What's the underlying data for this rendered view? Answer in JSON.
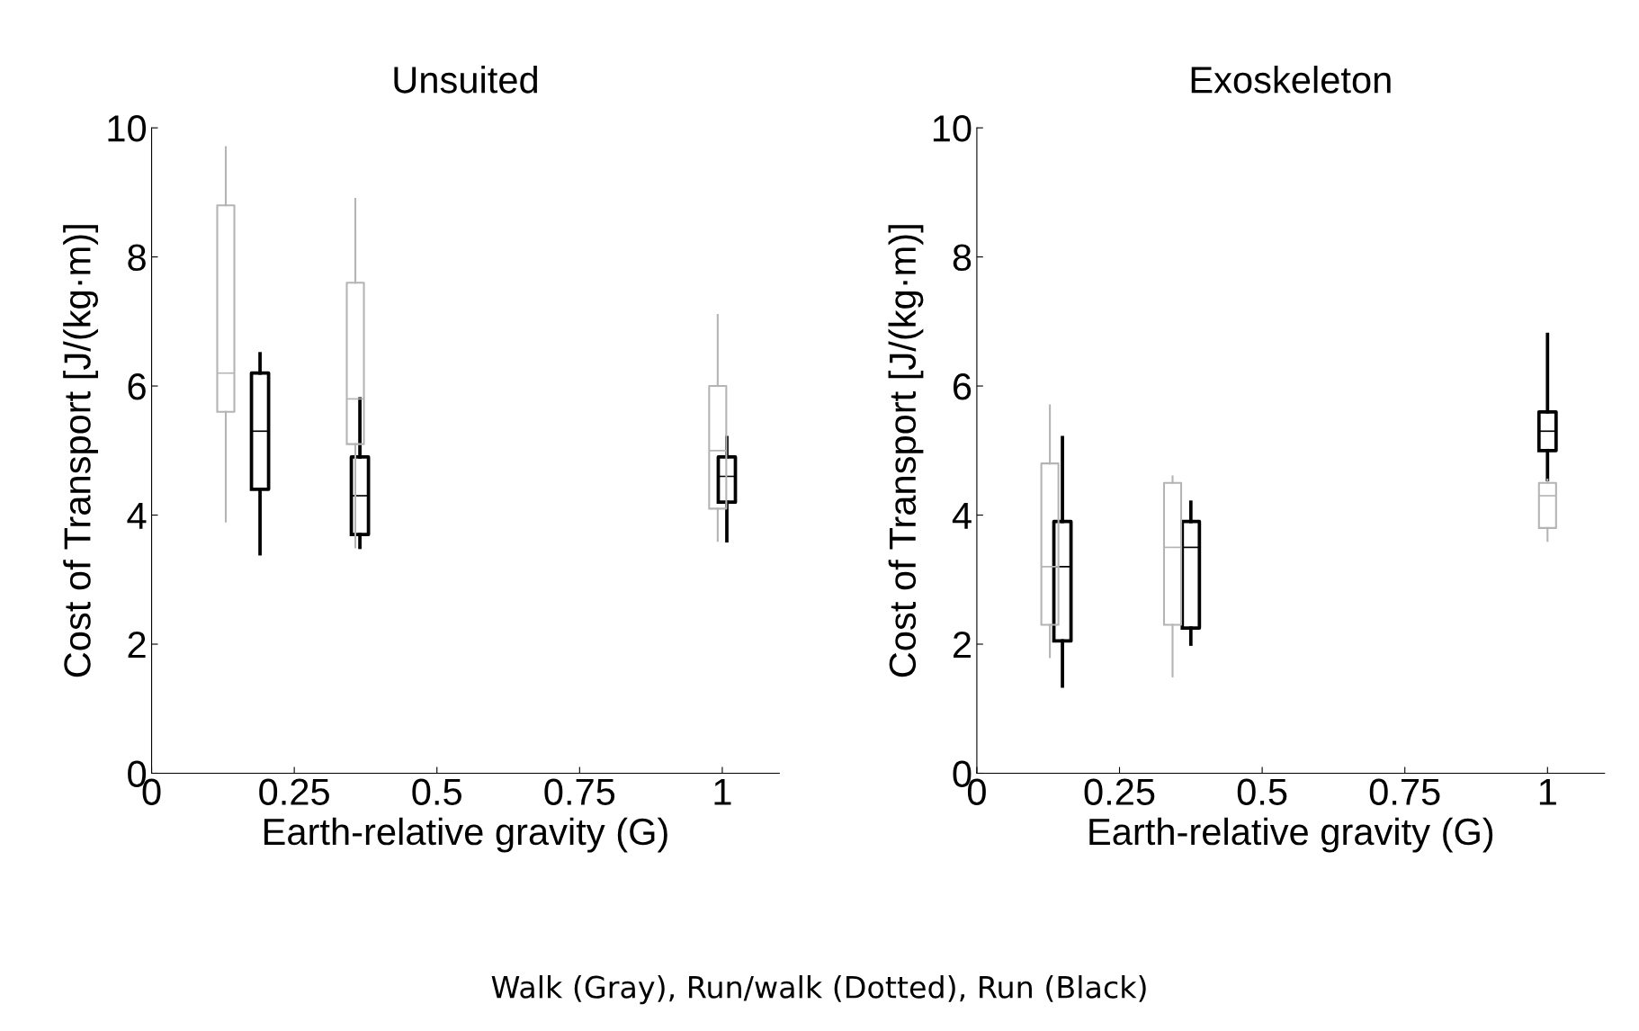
{
  "chart_data": [
    {
      "type": "box",
      "title": "Unsuited",
      "xlabel": "Earth-relative gravity (G)",
      "ylabel": "Cost of Transport [J/(kg·m)]",
      "xlim": [
        0,
        1.1
      ],
      "xticks": [
        0,
        0.25,
        0.5,
        0.75,
        1
      ],
      "ylim": [
        0,
        10
      ],
      "yticks": [
        0,
        2,
        4,
        6,
        8,
        10
      ],
      "grid": false,
      "annotations": [
        "Walk (Gray), Run/walk (Dotted), Run (Black)"
      ],
      "series": [
        {
          "color": "#b4b4b4",
          "x": [
            0.13,
            0.357,
            0.992
          ],
          "boxes": [
            {
              "low": 3.9,
              "q1": 5.6,
              "median": 6.2,
              "q3": 8.8,
              "high": 9.7
            },
            {
              "low": 3.5,
              "q1": 5.1,
              "median": 5.8,
              "q3": 7.6,
              "high": 8.9
            },
            {
              "low": 3.6,
              "q1": 4.1,
              "median": 5.0,
              "q3": 6.0,
              "high": 7.1
            }
          ]
        },
        {
          "color": "#000000",
          "x": [
            0.19,
            0.365,
            1.008
          ],
          "boxes": [
            {
              "low": 3.4,
              "q1": 4.4,
              "median": 5.3,
              "q3": 6.2,
              "high": 6.5
            },
            {
              "low": 3.5,
              "q1": 3.7,
              "median": 4.3,
              "q3": 4.9,
              "high": 5.8
            },
            {
              "low": 3.6,
              "q1": 4.2,
              "median": 4.6,
              "q3": 4.9,
              "high": 5.2
            }
          ]
        }
      ]
    },
    {
      "type": "box",
      "title": "Exoskeleton",
      "xlabel": "Earth-relative gravity (G)",
      "ylabel": "Cost of Transport [J/(kg·m)]",
      "xlim": [
        0,
        1.1
      ],
      "xticks": [
        0,
        0.25,
        0.5,
        0.75,
        1
      ],
      "ylim": [
        0,
        10
      ],
      "yticks": [
        0,
        2,
        4,
        6,
        8,
        10
      ],
      "grid": false,
      "series": [
        {
          "color": "#b4b4b4",
          "x": [
            0.128,
            0.343,
            1.0
          ],
          "boxes": [
            {
              "low": 1.8,
              "q1": 2.3,
              "median": 3.2,
              "q3": 4.8,
              "high": 5.7
            },
            {
              "low": 1.5,
              "q1": 2.3,
              "median": 3.5,
              "q3": 4.5,
              "high": 4.6
            },
            {
              "low": 3.6,
              "q1": 3.8,
              "median": 4.3,
              "q3": 4.5,
              "high": 4.55
            }
          ]
        },
        {
          "color": "#000000",
          "x": [
            0.15,
            0.375,
            1.0
          ],
          "boxes": [
            {
              "low": 1.35,
              "q1": 2.05,
              "median": 3.2,
              "q3": 3.9,
              "high": 5.2
            },
            {
              "low": 2.0,
              "q1": 2.25,
              "median": 3.5,
              "q3": 3.9,
              "high": 4.2
            },
            {
              "low": 4.55,
              "q1": 5.0,
              "median": 5.3,
              "q3": 5.6,
              "high": 6.8
            }
          ]
        }
      ]
    }
  ]
}
